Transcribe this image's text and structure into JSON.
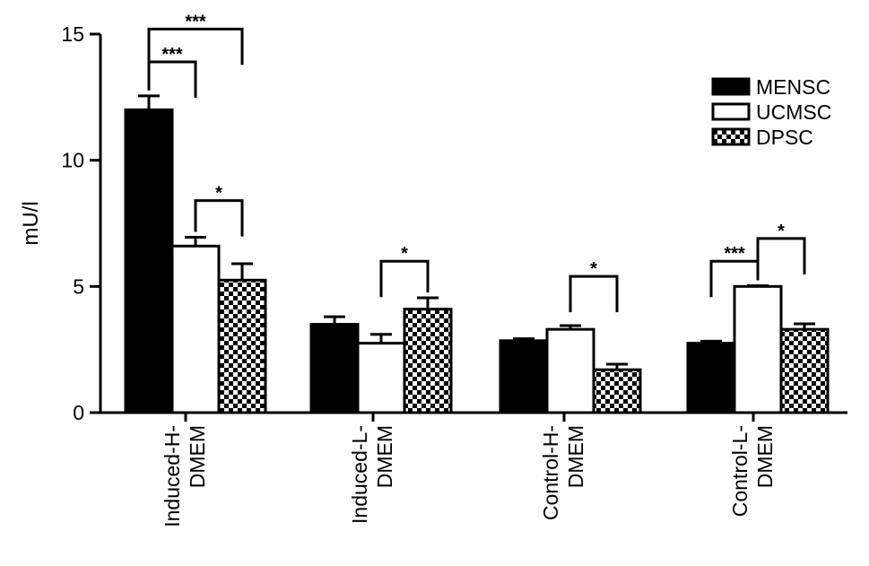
{
  "chart_data": {
    "type": "bar",
    "ylabel": "mU/l",
    "ylim": [
      0,
      15
    ],
    "yticks": [
      "0",
      "5",
      "10",
      "15"
    ],
    "grid": false,
    "legend_position": "top-right",
    "categories": [
      [
        "Induced-H-",
        "DMEM"
      ],
      [
        "Induced-L-",
        "DMEM"
      ],
      [
        "Control-H-",
        "DMEM"
      ],
      [
        "Control-L-",
        "DMEM"
      ]
    ],
    "series": [
      {
        "name": "MENSC",
        "fill": "solid-black",
        "values": [
          12.0,
          3.5,
          2.85,
          2.75
        ],
        "errors": [
          0.55,
          0.3,
          0.08,
          0.08
        ]
      },
      {
        "name": "UCMSC",
        "fill": "white",
        "values": [
          6.6,
          2.75,
          3.3,
          5.0
        ],
        "errors": [
          0.35,
          0.35,
          0.15,
          0.03
        ]
      },
      {
        "name": "DPSC",
        "fill": "checkered",
        "values": [
          5.25,
          4.1,
          1.7,
          3.3
        ],
        "errors": [
          0.65,
          0.45,
          0.22,
          0.22
        ]
      }
    ],
    "significance": [
      {
        "group": 0,
        "from": 0,
        "to": 2,
        "label": "***",
        "level": 15.2
      },
      {
        "group": 0,
        "from": 0,
        "to": 1,
        "label": "***",
        "level": 13.9
      },
      {
        "group": 0,
        "from": 1,
        "to": 2,
        "label": "*",
        "level": 8.4
      },
      {
        "group": 1,
        "from": 1,
        "to": 2,
        "label": "*",
        "level": 6.0
      },
      {
        "group": 2,
        "from": 1,
        "to": 2,
        "label": "*",
        "level": 5.4
      },
      {
        "group": 3,
        "from": 0,
        "to": 1,
        "label": "***",
        "level": 6.0
      },
      {
        "group": 3,
        "from": 1,
        "to": 2,
        "label": "*",
        "level": 6.9
      }
    ]
  }
}
